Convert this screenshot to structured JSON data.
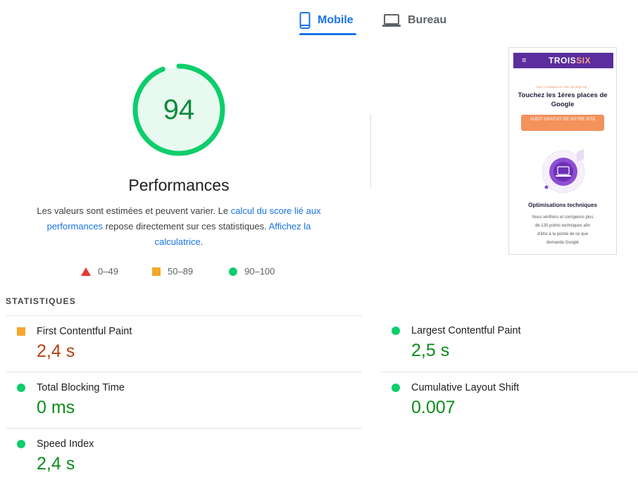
{
  "tabs": [
    {
      "label": "Mobile",
      "icon": "smartphone-icon",
      "active": true
    },
    {
      "label": "Bureau",
      "icon": "laptop-icon",
      "active": false
    }
  ],
  "score": {
    "value": "94",
    "value_fraction": 0.94,
    "title": "Performances",
    "color": "#0cce6b"
  },
  "description": {
    "text1": "Les valeurs sont estimées et peuvent varier. Le ",
    "link1": "calcul du score lié aux performances",
    "text2": " repose directement sur ces statistiques. ",
    "link2": "Affichez la calculatrice",
    "text3": "."
  },
  "legend": [
    {
      "label": "0–49",
      "shape": "triangle",
      "color": "#e53935"
    },
    {
      "label": "50–89",
      "shape": "square",
      "color": "#f4a72a"
    },
    {
      "label": "90–100",
      "shape": "circle",
      "color": "#0cce6b"
    }
  ],
  "thumbnail": {
    "logo_main": "TROIS",
    "logo_accent": "SIX",
    "kicker": "TOUT COMMENCE PAR UN BON RÉ...",
    "headline": "Touchez les 1ères places de Google",
    "cta": "AUDIT GRATUIT DE VOTRE SITE",
    "section_title": "Optimisations techniques",
    "section_text": "Nous vérifions et corrigeons plus de 130 points techniques afin d'être à la pointe de ce que demande Google"
  },
  "stats": {
    "title": "STATISTIQUES",
    "metrics": [
      {
        "name": "First Contentful Paint",
        "value": "2,4 s",
        "rating": "average"
      },
      {
        "name": "Largest Contentful Paint",
        "value": "2,5 s",
        "rating": "good"
      },
      {
        "name": "Total Blocking Time",
        "value": "0 ms",
        "rating": "good"
      },
      {
        "name": "Cumulative Layout Shift",
        "value": "0.007",
        "rating": "good"
      },
      {
        "name": "Speed Index",
        "value": "2,4 s",
        "rating": "good"
      }
    ]
  }
}
